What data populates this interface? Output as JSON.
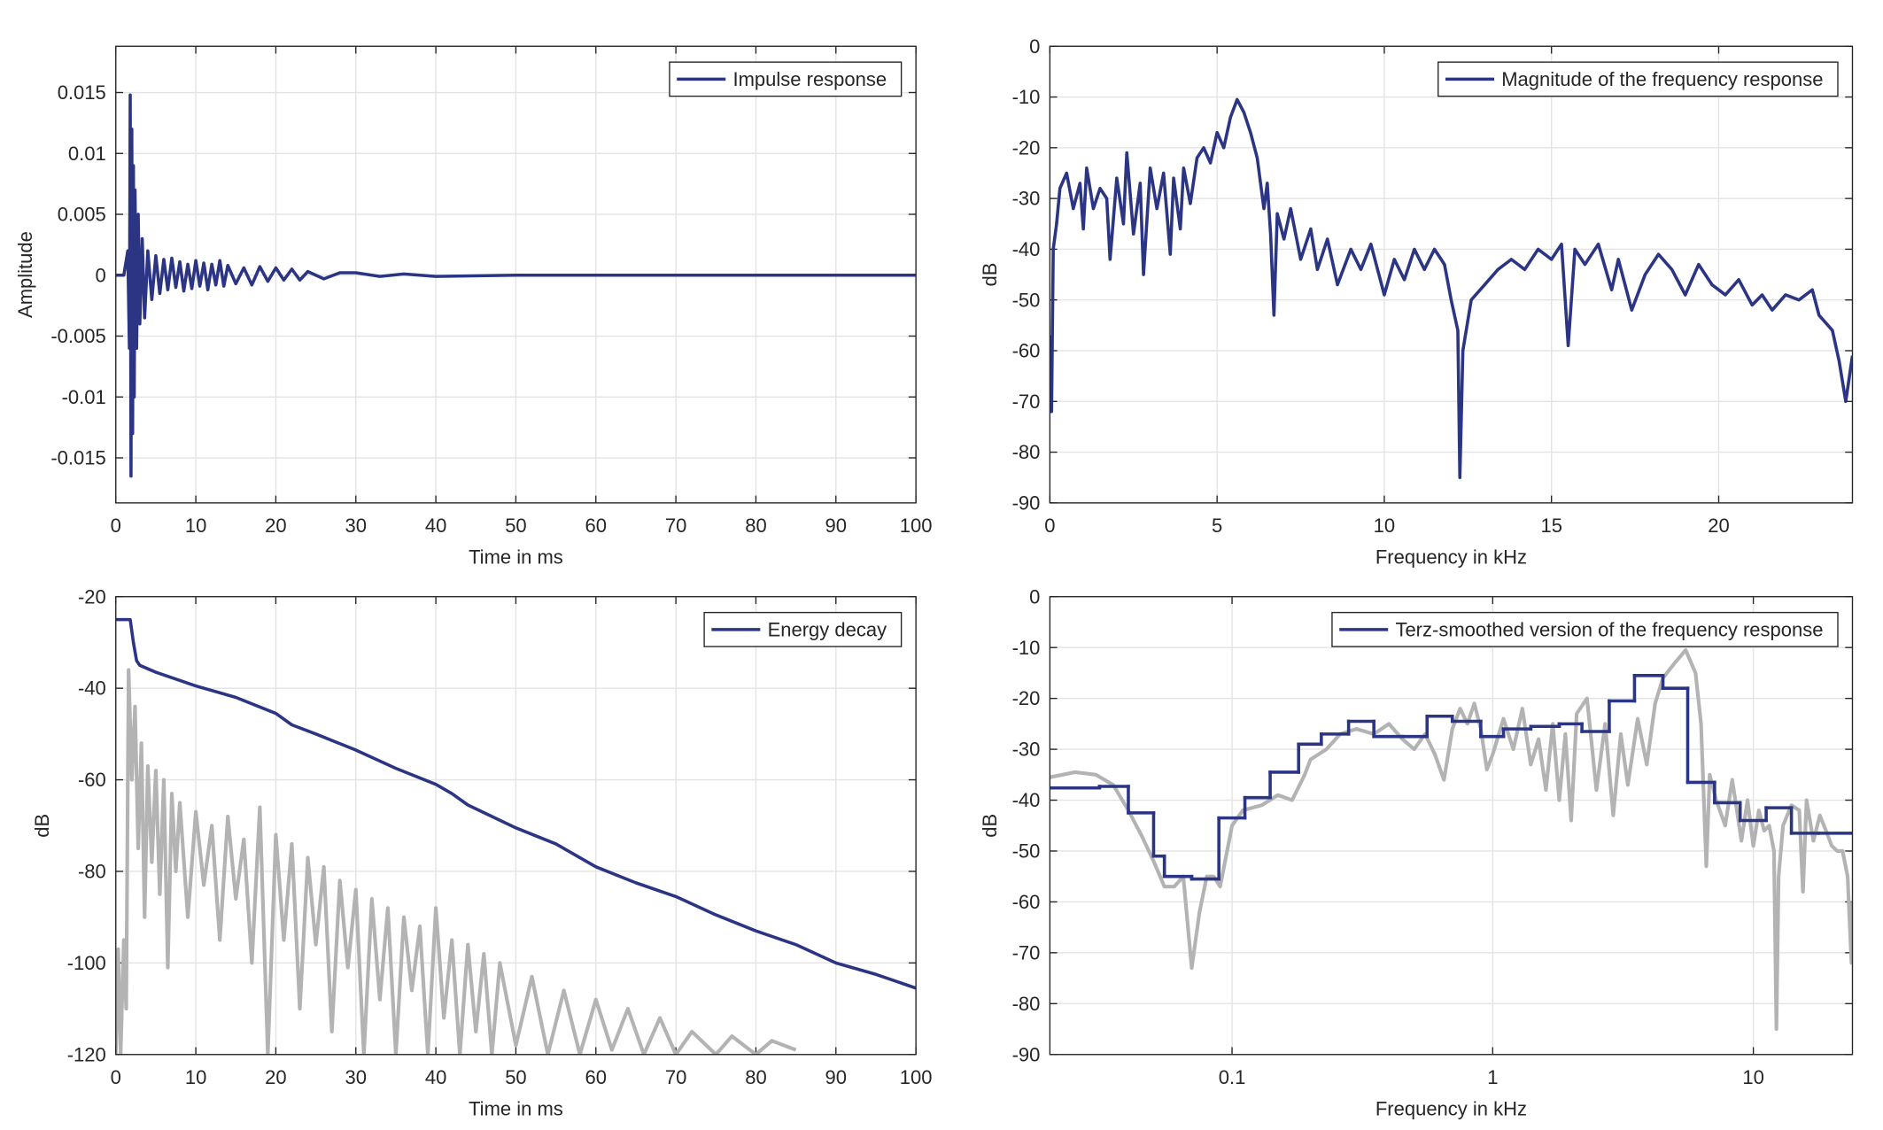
{
  "chart_data": [
    {
      "type": "line",
      "xlabel": "Time in ms",
      "ylabel": "Amplitude",
      "xlim": [
        0,
        100
      ],
      "xticks": [
        0,
        10,
        20,
        30,
        40,
        50,
        60,
        70,
        80,
        90,
        100
      ],
      "ylim": [
        -0.0187,
        0.0188
      ],
      "yticks": [
        -0.015,
        -0.01,
        -0.005,
        0,
        0.005,
        0.01,
        0.015
      ],
      "grid": true,
      "legend": "upper right",
      "series": [
        {
          "name": "Impulse response",
          "color": "#2b3584",
          "x": [
            0,
            1,
            1.5,
            1.7,
            1.8,
            1.9,
            2.0,
            2.1,
            2.2,
            2.3,
            2.4,
            2.6,
            2.8,
            3.0,
            3.3,
            3.6,
            4.0,
            4.5,
            5.0,
            5.5,
            6.0,
            6.5,
            7.0,
            7.5,
            8.0,
            8.5,
            9.0,
            9.5,
            10.0,
            10.5,
            11.0,
            11.5,
            12.0,
            12.5,
            13.0,
            13.5,
            14.0,
            15.0,
            16.0,
            17.0,
            18.0,
            19.0,
            20.0,
            21.0,
            22.0,
            23.0,
            24.0,
            26.0,
            28.0,
            30.0,
            33.0,
            36.0,
            40.0,
            50.0,
            100.0
          ],
          "values": [
            0,
            0,
            0.002,
            -0.006,
            0.0148,
            -0.0165,
            0.012,
            -0.013,
            0.009,
            -0.01,
            0.007,
            -0.006,
            0.005,
            -0.004,
            0.003,
            -0.0035,
            0.002,
            -0.002,
            0.0016,
            -0.0015,
            0.0013,
            -0.0012,
            0.0014,
            -0.001,
            0.0011,
            -0.0013,
            0.0009,
            -0.0011,
            0.0012,
            -0.0009,
            0.001,
            -0.0012,
            0.0009,
            -0.0008,
            0.0012,
            -0.0009,
            0.0008,
            -0.0007,
            0.0006,
            -0.0008,
            0.0007,
            -0.0005,
            0.0006,
            -0.0004,
            0.0005,
            -0.0004,
            0.0003,
            -0.0003,
            0.0002,
            0.0002,
            -0.0001,
            0.0001,
            -0.0001,
            0,
            0
          ]
        }
      ]
    },
    {
      "type": "line",
      "xlabel": "Frequency in kHz",
      "ylabel": "dB",
      "xlim": [
        0,
        24
      ],
      "xticks": [
        0,
        5,
        10,
        15,
        20
      ],
      "ylim": [
        -90,
        0
      ],
      "yticks": [
        -90,
        -80,
        -70,
        -60,
        -50,
        -40,
        -30,
        -20,
        -10,
        0
      ],
      "grid": true,
      "legend": "upper right",
      "series": [
        {
          "name": "Magnitude of the frequency response",
          "color": "#2b3584",
          "x": [
            0,
            0.05,
            0.1,
            0.2,
            0.3,
            0.5,
            0.7,
            0.9,
            1.0,
            1.1,
            1.3,
            1.5,
            1.7,
            1.8,
            2.0,
            2.2,
            2.3,
            2.5,
            2.7,
            2.8,
            3.0,
            3.2,
            3.4,
            3.6,
            3.7,
            3.9,
            4.0,
            4.2,
            4.4,
            4.6,
            4.8,
            5.0,
            5.2,
            5.4,
            5.6,
            5.8,
            6.0,
            6.2,
            6.4,
            6.5,
            6.6,
            6.7,
            6.8,
            7.0,
            7.2,
            7.5,
            7.8,
            8.0,
            8.3,
            8.6,
            9.0,
            9.3,
            9.6,
            10.0,
            10.3,
            10.6,
            10.9,
            11.2,
            11.5,
            11.8,
            12.0,
            12.2,
            12.26,
            12.35,
            12.6,
            13.0,
            13.4,
            13.8,
            14.2,
            14.6,
            15.0,
            15.3,
            15.5,
            15.7,
            16.0,
            16.4,
            16.8,
            17.0,
            17.4,
            17.8,
            18.2,
            18.6,
            19.0,
            19.4,
            19.8,
            20.2,
            20.6,
            21.0,
            21.3,
            21.6,
            22.0,
            22.4,
            22.8,
            23.0,
            23.4,
            23.6,
            23.8,
            24.0
          ],
          "values": [
            -57,
            -72,
            -40,
            -35,
            -28,
            -25,
            -32,
            -27,
            -36,
            -24,
            -32,
            -28,
            -30,
            -42,
            -26,
            -35,
            -21,
            -37,
            -27,
            -45,
            -24,
            -32,
            -25,
            -41,
            -26,
            -36,
            -24,
            -31,
            -22,
            -20,
            -23,
            -17,
            -20,
            -14,
            -10.5,
            -13,
            -17,
            -22,
            -32,
            -27,
            -37,
            -53,
            -33,
            -38,
            -32,
            -42,
            -36,
            -44,
            -38,
            -47,
            -40,
            -44,
            -39,
            -49,
            -42,
            -46,
            -40,
            -44,
            -40,
            -43,
            -50,
            -56,
            -85,
            -60,
            -50,
            -47,
            -44,
            -42,
            -44,
            -40,
            -42,
            -39,
            -59,
            -40,
            -43,
            -39,
            -48,
            -42,
            -52,
            -45,
            -41,
            -44,
            -49,
            -43,
            -47,
            -49,
            -46,
            -51,
            -49,
            -52,
            -49,
            -50,
            -48,
            -53,
            -56,
            -62,
            -70,
            -61
          ]
        }
      ]
    },
    {
      "type": "line",
      "xlabel": "Time in ms",
      "ylabel": "dB",
      "xlim": [
        0,
        100
      ],
      "xticks": [
        0,
        10,
        20,
        30,
        40,
        50,
        60,
        70,
        80,
        90,
        100
      ],
      "ylim": [
        -120,
        -20
      ],
      "yticks": [
        -120,
        -100,
        -80,
        -60,
        -40,
        -20
      ],
      "grid": true,
      "legend": "upper right",
      "series": [
        {
          "color": "#b3b3b3",
          "x": [
            0,
            0.3,
            0.6,
            1,
            1.3,
            1.6,
            2,
            2.4,
            2.8,
            3.2,
            3.6,
            4,
            4.5,
            5,
            5.5,
            6,
            6.5,
            7,
            7.5,
            8,
            9,
            10,
            11,
            12,
            13,
            14,
            15,
            16,
            17,
            18,
            19,
            20,
            21,
            22,
            23,
            24,
            25,
            26,
            27,
            28,
            29,
            30,
            31,
            32,
            33,
            34,
            35,
            36,
            37,
            38,
            39,
            40,
            41,
            42,
            43,
            44,
            45,
            46,
            47,
            48,
            50,
            52,
            54,
            56,
            58,
            60,
            62,
            64,
            66,
            68,
            70,
            72,
            75,
            77,
            80,
            82,
            85
          ],
          "values": [
            -120,
            -97,
            -120,
            -95,
            -110,
            -36,
            -60,
            -44,
            -75,
            -52,
            -90,
            -57,
            -78,
            -58,
            -85,
            -60,
            -101,
            -63,
            -80,
            -65,
            -90,
            -67,
            -83,
            -70,
            -95,
            -68,
            -86,
            -73,
            -100,
            -66,
            -120,
            -72,
            -95,
            -74,
            -110,
            -77,
            -96,
            -79,
            -115,
            -82,
            -101,
            -84,
            -120,
            -86,
            -108,
            -88,
            -120,
            -90,
            -106,
            -92,
            -120,
            -88,
            -112,
            -95,
            -120,
            -96,
            -115,
            -98,
            -120,
            -100,
            -118,
            -103,
            -120,
            -106,
            -120,
            -108,
            -119,
            -110,
            -120,
            -112,
            -120,
            -115,
            -120,
            -116,
            -120,
            -117,
            -119
          ]
        },
        {
          "name": "Energy decay",
          "color": "#2b3584",
          "x": [
            0,
            1.8,
            2.2,
            2.6,
            3,
            5,
            10,
            15,
            20,
            22,
            25,
            30,
            35,
            40,
            42,
            44,
            50,
            55,
            60,
            65,
            70,
            75,
            80,
            85,
            90,
            95,
            100
          ],
          "values": [
            -25,
            -25,
            -30,
            -34,
            -35,
            -36.5,
            -39.5,
            -42,
            -45.5,
            -48,
            -50,
            -53.5,
            -57.5,
            -61,
            -63,
            -65.5,
            -70.5,
            -74,
            -79,
            -82.5,
            -85.5,
            -89.5,
            -93,
            -96,
            -100,
            -102.5,
            -105.5
          ]
        }
      ]
    },
    {
      "type": "line",
      "xlabel": "Frequency in kHz",
      "ylabel": "dB",
      "xlog": true,
      "xlim": [
        0.02,
        24
      ],
      "xticks": [
        0.1,
        1,
        10
      ],
      "ylim": [
        -90,
        0
      ],
      "yticks": [
        -90,
        -80,
        -70,
        -60,
        -50,
        -40,
        -30,
        -20,
        -10,
        0
      ],
      "grid": true,
      "legend": "upper right",
      "series": [
        {
          "color": "#b3b3b3",
          "x": [
            0.02,
            0.025,
            0.03,
            0.035,
            0.04,
            0.045,
            0.05,
            0.055,
            0.06,
            0.065,
            0.07,
            0.075,
            0.08,
            0.085,
            0.09,
            0.1,
            0.11,
            0.13,
            0.15,
            0.17,
            0.19,
            0.2,
            0.23,
            0.26,
            0.3,
            0.35,
            0.4,
            0.45,
            0.5,
            0.55,
            0.6,
            0.65,
            0.7,
            0.75,
            0.8,
            0.85,
            0.9,
            0.95,
            1.0,
            1.1,
            1.2,
            1.3,
            1.4,
            1.5,
            1.6,
            1.7,
            1.8,
            1.9,
            2.0,
            2.1,
            2.3,
            2.5,
            2.7,
            2.9,
            3.1,
            3.3,
            3.6,
            3.9,
            4.2,
            4.5,
            5.0,
            5.5,
            6.0,
            6.3,
            6.6,
            6.8,
            7.2,
            7.8,
            8.3,
            9.0,
            9.5,
            10,
            10.5,
            11,
            11.5,
            12,
            12.26,
            12.5,
            13,
            14,
            15,
            15.5,
            16,
            17,
            18,
            19,
            20,
            21,
            22,
            23,
            23.8,
            24
          ],
          "values": [
            -35.5,
            -34.5,
            -35,
            -37,
            -42,
            -47,
            -52,
            -57,
            -57,
            -55,
            -73,
            -62,
            -55,
            -55,
            -57,
            -45,
            -42,
            -41,
            -39,
            -40,
            -35,
            -32,
            -30,
            -27,
            -26,
            -27,
            -25,
            -28,
            -30,
            -27,
            -31,
            -36,
            -26,
            -22,
            -25,
            -21,
            -26,
            -34,
            -31,
            -24,
            -30,
            -22,
            -33,
            -28,
            -38,
            -25,
            -40,
            -27,
            -44,
            -23,
            -20,
            -38,
            -25,
            -43,
            -27,
            -37,
            -24,
            -33,
            -21,
            -16,
            -13,
            -10.5,
            -15,
            -25,
            -53,
            -35,
            -40,
            -45,
            -36,
            -48,
            -40,
            -49,
            -42,
            -46,
            -45,
            -50,
            -85,
            -55,
            -45,
            -41,
            -42,
            -58,
            -40,
            -48,
            -43,
            -46,
            -49,
            -50,
            -50,
            -55,
            -72,
            -60
          ]
        },
        {
          "name": "Terz-smoothed version of the frequency response",
          "color": "#2b3584",
          "step": "post",
          "x": [
            0.02,
            0.031,
            0.04,
            0.05,
            0.055,
            0.07,
            0.089,
            0.112,
            0.14,
            0.18,
            0.22,
            0.28,
            0.35,
            0.45,
            0.56,
            0.7,
            0.9,
            1.1,
            1.4,
            1.8,
            2.2,
            2.8,
            3.5,
            4.5,
            5.6,
            7.1,
            8.9,
            11.2,
            14,
            17.8,
            24
          ],
          "values": [
            -37.6,
            -37.3,
            -42.5,
            -51,
            -55,
            -55.5,
            -43.5,
            -39.5,
            -34.5,
            -29,
            -27,
            -24.5,
            -27.5,
            -27.5,
            -23.5,
            -24.5,
            -27.5,
            -26,
            -25.5,
            -25,
            -26.5,
            -20.5,
            -15.5,
            -18,
            -36.5,
            -40.5,
            -44,
            -41.5,
            -46.5,
            -46.5,
            -46.5
          ]
        }
      ]
    }
  ]
}
